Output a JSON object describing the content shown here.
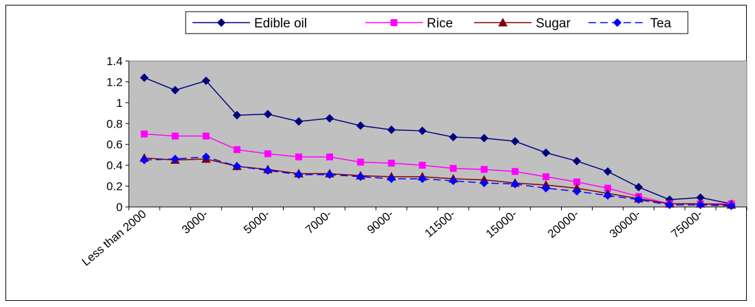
{
  "chart_data": {
    "type": "line",
    "title": "",
    "xlabel": "",
    "ylabel": "",
    "ylim": [
      0,
      1.4
    ],
    "yticks": [
      0,
      0.2,
      0.4,
      0.6,
      0.8,
      1,
      1.2,
      1.4
    ],
    "ytick_labels": [
      "0",
      "0.2",
      "0.4",
      "0.6",
      "0.8",
      "1",
      "1.2",
      "1.4"
    ],
    "x_labels": [
      "Less than 2000",
      "3000-",
      "5000-",
      "7000-",
      "9000-",
      "11500-",
      "15000-",
      "20000-",
      "30000-",
      "75000-"
    ],
    "point_count": 20,
    "grid": false,
    "legend_position": "top",
    "plot_background": "#c0c0c0",
    "series": [
      {
        "name": "Edible oil",
        "color": "#000080",
        "marker": "diamond",
        "dash": "solid",
        "values": [
          1.24,
          1.12,
          1.21,
          0.88,
          0.89,
          0.82,
          0.85,
          0.78,
          0.74,
          0.73,
          0.67,
          0.66,
          0.63,
          0.52,
          0.44,
          0.34,
          0.19,
          0.07,
          0.09,
          0.03
        ]
      },
      {
        "name": "Rice",
        "color": "#ff00ff",
        "marker": "square",
        "dash": "solid",
        "values": [
          0.7,
          0.68,
          0.68,
          0.55,
          0.51,
          0.48,
          0.48,
          0.43,
          0.42,
          0.4,
          0.37,
          0.36,
          0.34,
          0.29,
          0.24,
          0.18,
          0.1,
          0.03,
          0.03,
          0.03
        ]
      },
      {
        "name": "Sugar",
        "color": "#800000",
        "marker": "triangle",
        "dash": "solid",
        "values": [
          0.47,
          0.45,
          0.46,
          0.39,
          0.36,
          0.32,
          0.32,
          0.3,
          0.29,
          0.29,
          0.27,
          0.26,
          0.23,
          0.21,
          0.18,
          0.13,
          0.08,
          0.03,
          0.03,
          0.02
        ]
      },
      {
        "name": "Tea",
        "color": "#0000ff",
        "marker": "diamond",
        "dash": "dashed",
        "values": [
          0.45,
          0.46,
          0.48,
          0.39,
          0.35,
          0.31,
          0.31,
          0.29,
          0.27,
          0.27,
          0.25,
          0.23,
          0.22,
          0.18,
          0.15,
          0.11,
          0.07,
          0.02,
          0.02,
          0.01
        ]
      }
    ]
  }
}
